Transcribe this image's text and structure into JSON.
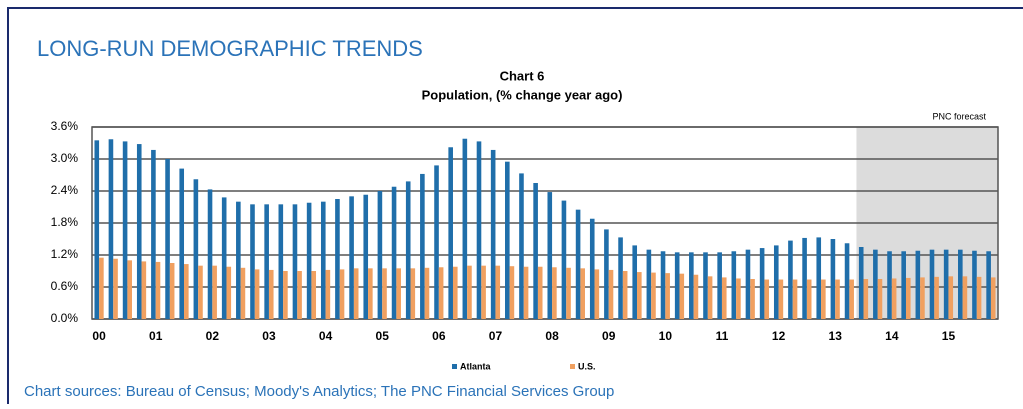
{
  "header": {
    "title": "LONG-RUN DEMOGRAPHIC TRENDS"
  },
  "chart_data": {
    "type": "bar",
    "title": "Chart 6",
    "subtitle": "Population, (% change year ago)",
    "categories": [
      "00",
      null,
      null,
      null,
      "01",
      null,
      null,
      null,
      "02",
      null,
      null,
      null,
      "03",
      null,
      null,
      null,
      "04",
      null,
      null,
      null,
      "05",
      null,
      null,
      null,
      "06",
      null,
      null,
      null,
      "07",
      null,
      null,
      null,
      "08",
      null,
      null,
      null,
      "09",
      null,
      null,
      null,
      "10",
      null,
      null,
      null,
      "11",
      null,
      null,
      null,
      "12",
      null,
      null,
      null,
      "13",
      null,
      null,
      null,
      "14",
      null,
      null,
      null,
      "15",
      null,
      null,
      null
    ],
    "series": [
      {
        "name": "Atlanta",
        "color": "#1f6eaa",
        "values": [
          3.35,
          3.37,
          3.33,
          3.28,
          3.17,
          3.0,
          2.82,
          2.62,
          2.43,
          2.28,
          2.2,
          2.15,
          2.15,
          2.15,
          2.15,
          2.18,
          2.2,
          2.25,
          2.3,
          2.33,
          2.4,
          2.48,
          2.58,
          2.72,
          2.88,
          3.22,
          3.38,
          3.33,
          3.17,
          2.95,
          2.73,
          2.55,
          2.38,
          2.22,
          2.05,
          1.88,
          1.68,
          1.53,
          1.38,
          1.3,
          1.27,
          1.25,
          1.25,
          1.25,
          1.25,
          1.27,
          1.3,
          1.33,
          1.38,
          1.47,
          1.52,
          1.53,
          1.5,
          1.42,
          1.35,
          1.3,
          1.27,
          1.27,
          1.28,
          1.3,
          1.3,
          1.3,
          1.28,
          1.27
        ]
      },
      {
        "name": "U.S.",
        "color": "#f0a060",
        "values": [
          1.15,
          1.13,
          1.1,
          1.08,
          1.07,
          1.05,
          1.03,
          1.0,
          1.0,
          0.98,
          0.96,
          0.93,
          0.92,
          0.9,
          0.9,
          0.9,
          0.92,
          0.93,
          0.95,
          0.95,
          0.95,
          0.95,
          0.95,
          0.96,
          0.97,
          0.98,
          1.0,
          1.0,
          1.0,
          0.99,
          0.98,
          0.98,
          0.97,
          0.96,
          0.95,
          0.93,
          0.92,
          0.9,
          0.88,
          0.87,
          0.86,
          0.85,
          0.83,
          0.8,
          0.78,
          0.76,
          0.75,
          0.74,
          0.74,
          0.74,
          0.74,
          0.74,
          0.74,
          0.74,
          0.75,
          0.75,
          0.76,
          0.77,
          0.78,
          0.79,
          0.8,
          0.8,
          0.79,
          0.78
        ]
      }
    ],
    "ylim": [
      0,
      3.6
    ],
    "yticks": [
      {
        "value": 0,
        "label": "0.0%"
      },
      {
        "value": 0.6,
        "label": "0.6%"
      },
      {
        "value": 1.2,
        "label": "1.2%"
      },
      {
        "value": 1.8,
        "label": "1.8%"
      },
      {
        "value": 2.4,
        "label": "2.4%"
      },
      {
        "value": 3.0,
        "label": "3.0%"
      },
      {
        "value": 3.6,
        "label": "3.6%"
      }
    ],
    "grid": true,
    "legend": "bottom",
    "shade": {
      "label": "PNC forecast",
      "start": 54
    }
  },
  "footer": {
    "source": "Chart sources: Bureau of Census; Moody's Analytics; The PNC Financial Services Group"
  }
}
